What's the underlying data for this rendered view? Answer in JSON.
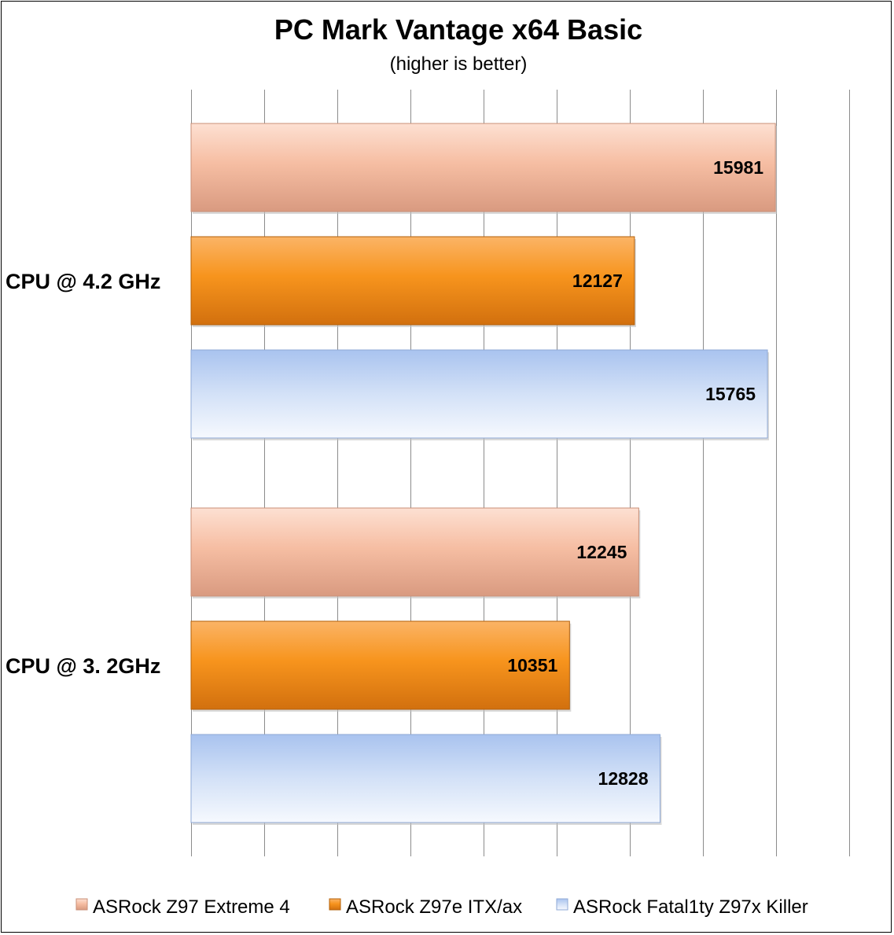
{
  "chart_data": {
    "type": "bar",
    "orientation": "horizontal",
    "title": "PC Mark Vantage x64 Basic",
    "subtitle": "(higher is better)",
    "categories": [
      "CPU @ 4.2 GHz",
      "CPU @ 3. 2GHz"
    ],
    "series": [
      {
        "name": "ASRock Z97 Extreme 4",
        "values": [
          15981,
          12245
        ],
        "color": "#f2b39a"
      },
      {
        "name": "ASRock Z97e ITX/ax",
        "values": [
          12127,
          10351
        ],
        "color": "#f7941d"
      },
      {
        "name": "ASRock Fatal1ty Z97x Killer",
        "values": [
          15765,
          12828
        ],
        "color": "#c6d9f5"
      }
    ],
    "xlim": [
      0,
      18000
    ],
    "x_tick_step": 2000,
    "grid": true,
    "x_tick_labels_shown": false,
    "legend_position": "bottom",
    "data_labels": true
  }
}
